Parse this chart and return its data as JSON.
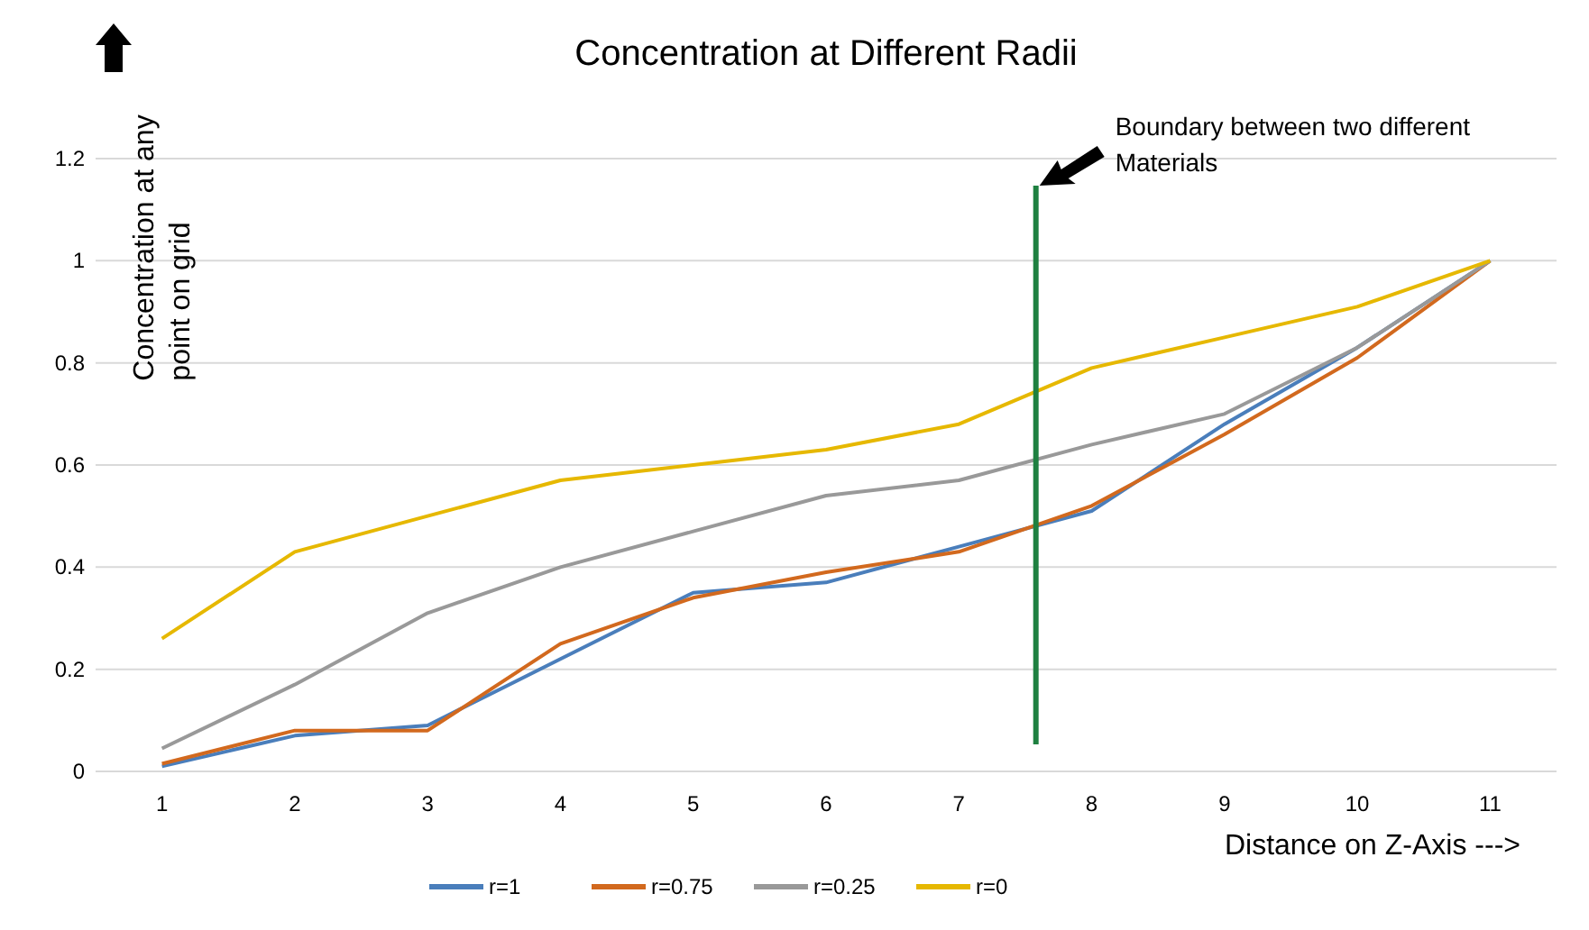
{
  "chart_data": {
    "type": "line",
    "title": "Concentration at Different Radii",
    "xlabel": "Distance on Z-Axis --->",
    "ylabel": "Concentration at any point on grid",
    "x": [
      1,
      2,
      3,
      4,
      5,
      6,
      7,
      8,
      9,
      10,
      11
    ],
    "xlim": [
      0.5,
      11.5
    ],
    "xticks": [
      1,
      2,
      3,
      4,
      5,
      6,
      7,
      8,
      9,
      10,
      11
    ],
    "ylim": [
      0,
      1.2
    ],
    "yticks": [
      0,
      0.2,
      0.4,
      0.6,
      0.8,
      1,
      1.2
    ],
    "grid": "y",
    "legend": "bottom",
    "marker": "none",
    "line_style": "solid",
    "series": [
      {
        "name": "r=1",
        "color": "#4a7ebb",
        "values": [
          0.01,
          0.07,
          0.09,
          0.22,
          0.35,
          0.37,
          0.44,
          0.51,
          0.68,
          0.83,
          1
        ]
      },
      {
        "name": "r=0.75",
        "color": "#d2691e",
        "values": [
          0.015,
          0.08,
          0.08,
          0.25,
          0.34,
          0.39,
          0.43,
          0.52,
          0.66,
          0.81,
          1
        ]
      },
      {
        "name": "r=0.25",
        "color": "#999999",
        "values": [
          0.045,
          0.17,
          0.31,
          0.4,
          0.47,
          0.54,
          0.57,
          0.64,
          0.7,
          0.83,
          1
        ]
      },
      {
        "name": "r=0",
        "color": "#e6b800",
        "values": [
          0.26,
          0.43,
          0.5,
          0.57,
          0.6,
          0.63,
          0.68,
          0.79,
          0.85,
          0.91,
          1
        ]
      }
    ],
    "annotations": [
      "Boundary between two different Materials"
    ],
    "ref_lines": [
      {
        "axis": "x",
        "value": 7.58,
        "color": "#1e8040"
      }
    ]
  }
}
